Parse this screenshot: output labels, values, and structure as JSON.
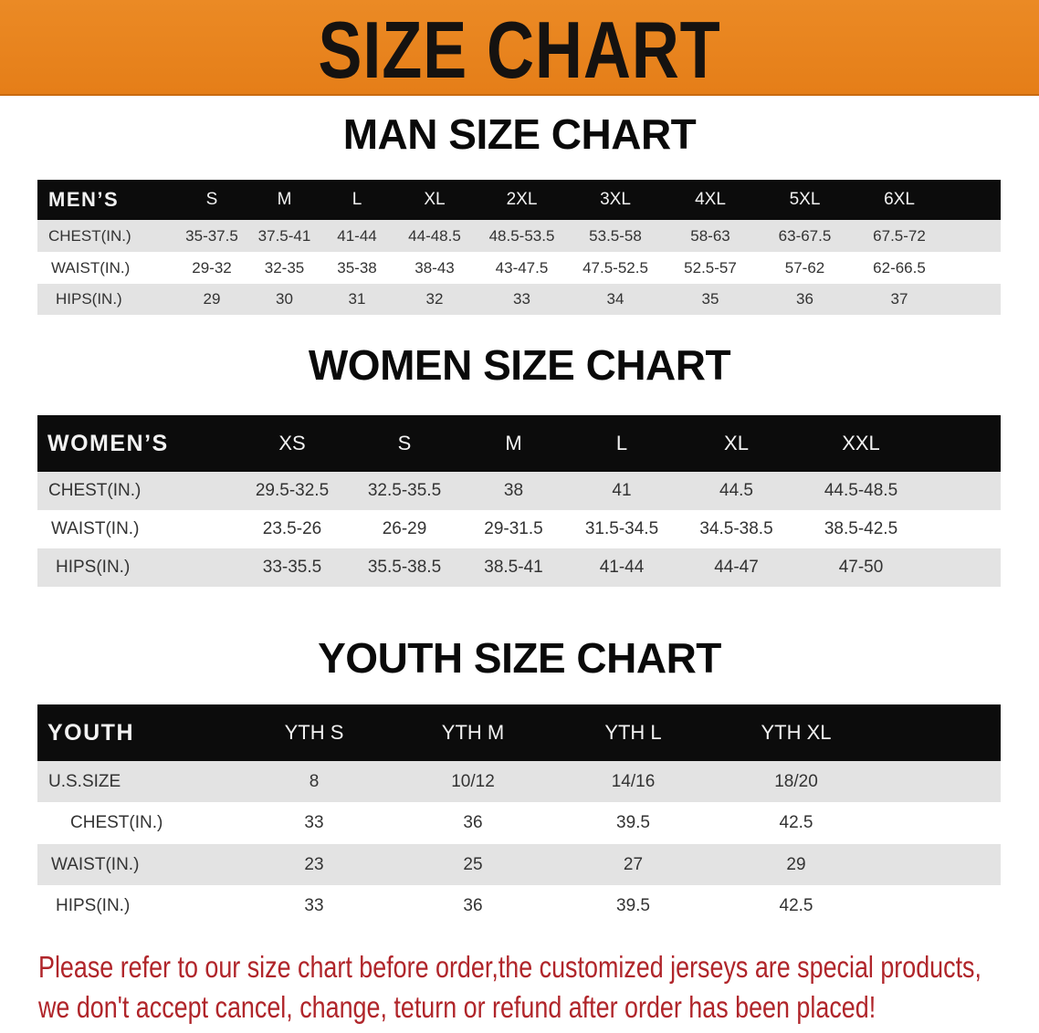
{
  "banner": {
    "title": "SIZE CHART",
    "color": "#e8821e"
  },
  "men": {
    "title": "MAN SIZE CHART",
    "header": "MEN’S",
    "sizes": [
      "S",
      "M",
      "L",
      "XL",
      "2XL",
      "3XL",
      "4XL",
      "5XL",
      "6XL"
    ],
    "rows": [
      {
        "label": "CHEST(IN.)",
        "values": [
          "35-37.5",
          "37.5-41",
          "41-44",
          "44-48.5",
          "48.5-53.5",
          "53.5-58",
          "58-63",
          "63-67.5",
          "67.5-72"
        ]
      },
      {
        "label": "WAIST(IN.)",
        "values": [
          "29-32",
          "32-35",
          "35-38",
          "38-43",
          "43-47.5",
          "47.5-52.5",
          "52.5-57",
          "57-62",
          "62-66.5"
        ]
      },
      {
        "label": "HIPS(IN.)",
        "values": [
          "29",
          "30",
          "31",
          "32",
          "33",
          "34",
          "35",
          "36",
          "37"
        ]
      }
    ]
  },
  "women": {
    "title": "WOMEN SIZE CHART",
    "header": "WOMEN’S",
    "sizes": [
      "XS",
      "S",
      "M",
      "L",
      "XL",
      "XXL"
    ],
    "rows": [
      {
        "label": "CHEST(IN.)",
        "values": [
          "29.5-32.5",
          "32.5-35.5",
          "38",
          "41",
          "44.5",
          "44.5-48.5"
        ]
      },
      {
        "label": "WAIST(IN.)",
        "values": [
          "23.5-26",
          "26-29",
          "29-31.5",
          "31.5-34.5",
          "34.5-38.5",
          "38.5-42.5"
        ]
      },
      {
        "label": "HIPS(IN.)",
        "values": [
          "33-35.5",
          "35.5-38.5",
          "38.5-41",
          "41-44",
          "44-47",
          "47-50"
        ]
      }
    ]
  },
  "youth": {
    "title": "YOUTH SIZE CHART",
    "header": "YOUTH",
    "sizes": [
      "YTH S",
      "YTH M",
      "YTH L",
      "YTH XL"
    ],
    "rows": [
      {
        "label": "U.S.SIZE",
        "values": [
          "8",
          "10/12",
          "14/16",
          "18/20"
        ]
      },
      {
        "label": "CHEST(IN.)",
        "values": [
          "33",
          "36",
          "39.5",
          "42.5"
        ]
      },
      {
        "label": "WAIST(IN.)",
        "values": [
          "23",
          "25",
          "27",
          "29"
        ]
      },
      {
        "label": "HIPS(IN.)",
        "values": [
          "33",
          "36",
          "39.5",
          "42.5"
        ]
      }
    ]
  },
  "footer": {
    "line1": "Please refer to our size chart before order,the customized jerseys are special products,",
    "line2": "we don't accept cancel, change, teturn or refund after order has been placed!",
    "color": "#b0252a"
  }
}
